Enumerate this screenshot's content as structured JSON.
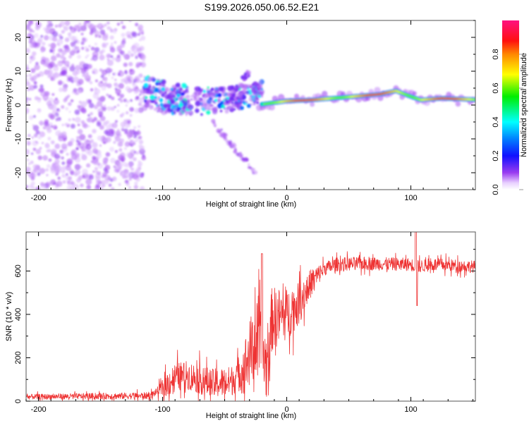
{
  "figure_title": "S199.2026.050.06.52.E21",
  "chart_data": [
    {
      "type": "heatmap",
      "name": "spectrogram",
      "title": "S199.2026.050.06.52.E21",
      "xlabel": "Height of straight line (km)",
      "ylabel": "Frequency (Hz)",
      "xlim": [
        -210,
        152
      ],
      "ylim": [
        -25,
        25
      ],
      "xticks": [
        -200,
        -100,
        0,
        100
      ],
      "yticks": [
        -20,
        -10,
        0,
        10,
        20
      ],
      "colorbar": {
        "label": "Normalized spectral amplitude",
        "range": [
          0.0,
          1.0
        ],
        "ticks": [
          "0.0",
          "0.2",
          "0.4",
          "0.6",
          "0.8"
        ],
        "colormap": "white-purple-blue-cyan-green-yellow-red-magenta"
      },
      "features": [
        {
          "description": "scattered low-amplitude noise",
          "x_range": [
            -210,
            -115
          ],
          "freq_range": [
            -25,
            25
          ],
          "amplitude": 0.1
        },
        {
          "description": "transition clutter",
          "x_range": [
            -115,
            -20
          ],
          "freq_range": [
            -10,
            8
          ],
          "amplitude": 0.25
        },
        {
          "description": "descending streak",
          "x_range": [
            -60,
            -25
          ],
          "freq_range": [
            -20,
            -5
          ],
          "amplitude": 0.1
        },
        {
          "description": "ascending streak",
          "x_range": [
            -50,
            -30
          ],
          "freq_range": [
            0,
            10
          ],
          "amplitude": 0.12
        },
        {
          "description": "strong carrier line",
          "x_range": [
            -20,
            152
          ],
          "freq_range": [
            0.5,
            3.5
          ],
          "amplitude": 0.9
        }
      ],
      "carrier_center_hz": [
        {
          "x": -20,
          "f": 0.2
        },
        {
          "x": 0,
          "f": 1.2
        },
        {
          "x": 20,
          "f": 1.5
        },
        {
          "x": 50,
          "f": 2.4
        },
        {
          "x": 75,
          "f": 3.2
        },
        {
          "x": 88,
          "f": 4.2
        },
        {
          "x": 98,
          "f": 2.8
        },
        {
          "x": 108,
          "f": 1.5
        },
        {
          "x": 125,
          "f": 2.0
        },
        {
          "x": 152,
          "f": 1.6
        }
      ]
    },
    {
      "type": "line",
      "name": "snr",
      "xlabel": "Height of straight line (km)",
      "ylabel": "SNR (10 * v/v)",
      "xlim": [
        -210,
        152
      ],
      "ylim": [
        0,
        780
      ],
      "xticks": [
        -200,
        -100,
        0,
        100
      ],
      "yticks": [
        0,
        200,
        400,
        600
      ],
      "series": [
        {
          "name": "SNR",
          "color": "#ee3333",
          "trend": [
            {
              "x": -210,
              "y": 20
            },
            {
              "x": -110,
              "y": 25
            },
            {
              "x": -100,
              "y": 60
            },
            {
              "x": -90,
              "y": 110
            },
            {
              "x": -80,
              "y": 120
            },
            {
              "x": -60,
              "y": 80
            },
            {
              "x": -45,
              "y": 90
            },
            {
              "x": -35,
              "y": 150
            },
            {
              "x": -25,
              "y": 280
            },
            {
              "x": -15,
              "y": 150
            },
            {
              "x": -12,
              "y": 380
            },
            {
              "x": 0,
              "y": 400
            },
            {
              "x": 10,
              "y": 450
            },
            {
              "x": 20,
              "y": 550
            },
            {
              "x": 30,
              "y": 610
            },
            {
              "x": 40,
              "y": 630
            },
            {
              "x": 60,
              "y": 635
            },
            {
              "x": 100,
              "y": 630
            },
            {
              "x": 104,
              "y": 620
            },
            {
              "x": 120,
              "y": 630
            },
            {
              "x": 152,
              "y": 620
            }
          ],
          "noise_amplitude": [
            {
              "x": -210,
              "a": 15
            },
            {
              "x": -105,
              "a": 20
            },
            {
              "x": -95,
              "a": 80
            },
            {
              "x": -40,
              "a": 90
            },
            {
              "x": -25,
              "a": 250
            },
            {
              "x": -10,
              "a": 180
            },
            {
              "x": 10,
              "a": 120
            },
            {
              "x": 30,
              "a": 40
            },
            {
              "x": 152,
              "a": 35
            }
          ],
          "spikes": [
            {
              "x": 104,
              "y_max": 780,
              "y_min": 440
            },
            {
              "x": -20,
              "y_max": 680
            }
          ]
        }
      ]
    }
  ]
}
